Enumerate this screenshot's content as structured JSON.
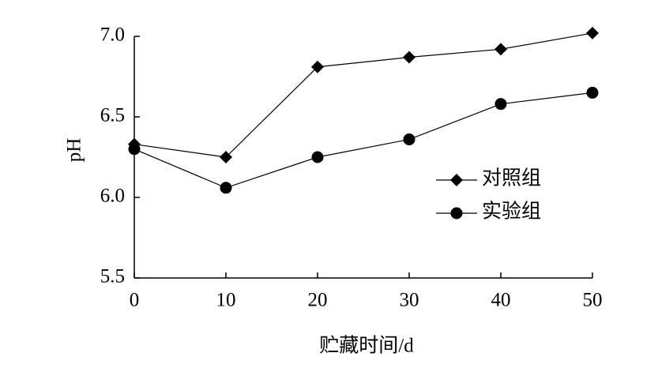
{
  "chart_data": {
    "type": "line",
    "x_label": "贮藏时间/d",
    "y_label": "pH",
    "x": [
      0,
      10,
      20,
      30,
      40,
      50
    ],
    "series": [
      {
        "name": "对照组",
        "color": "#000000",
        "marker": "diamond",
        "values": [
          6.33,
          6.25,
          6.81,
          6.87,
          6.92,
          7.02
        ]
      },
      {
        "name": "实验组",
        "color": "#000000",
        "marker": "circle",
        "values": [
          6.3,
          6.06,
          6.25,
          6.36,
          6.58,
          6.65
        ]
      }
    ],
    "xlim": [
      0,
      50
    ],
    "xticks": [
      0,
      10,
      20,
      30,
      40,
      50
    ],
    "ylim": [
      5.5,
      7.0
    ],
    "yticks": [
      5.5,
      {
        "value": 6.0,
        "label": "6.0"
      },
      6.5,
      {
        "value": 7.0,
        "label": "7.0"
      }
    ],
    "grid": false,
    "legend": "right"
  }
}
